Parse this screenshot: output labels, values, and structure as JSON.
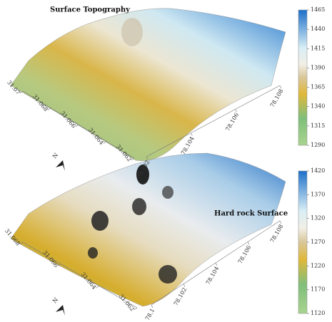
{
  "chart_data": [
    {
      "type": "surface",
      "title": "Surface Topography",
      "north": "N",
      "xlim": [
        31.062,
        31.07
      ],
      "xticks": [
        31.062,
        31.064,
        31.066,
        31.068,
        31.07
      ],
      "ylim": [
        78.102,
        78.108
      ],
      "yticks": [
        78.102,
        78.104,
        78.106,
        78.108
      ],
      "zlim": [
        1290,
        1465
      ],
      "zticks": [
        1290,
        1315,
        1340,
        1365,
        1390,
        1415,
        1440,
        1465
      ]
    },
    {
      "type": "surface",
      "title": "Hard rock Surface",
      "north": "N",
      "xlim": [
        31.062,
        31.068
      ],
      "xticks": [
        31.062,
        31.064,
        31.066,
        31.068
      ],
      "ylim": [
        78.1,
        78.108
      ],
      "yticks": [
        78.1,
        78.102,
        78.104,
        78.106,
        78.108
      ],
      "zlim": [
        1120,
        1420
      ],
      "zticks": [
        1120,
        1170,
        1220,
        1270,
        1320,
        1370,
        1420
      ]
    }
  ]
}
